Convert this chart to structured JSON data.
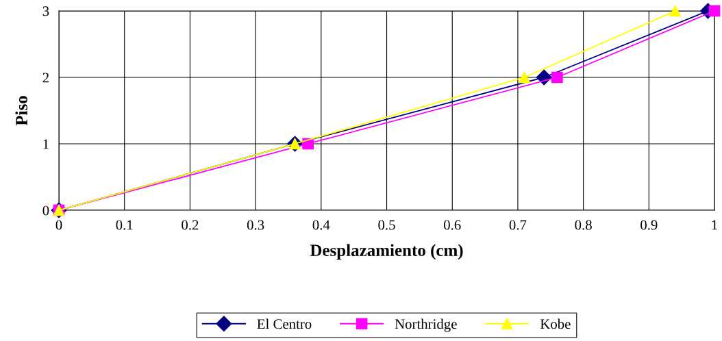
{
  "chart_data": {
    "type": "line",
    "xlabel": "Desplazamiento (cm)",
    "ylabel": "Piso",
    "series": [
      {
        "name": "El Centro",
        "color": "#000080",
        "marker": "diamond",
        "x": [
          0,
          0.36,
          0.74,
          0.99
        ],
        "values": [
          0,
          1,
          2,
          3
        ]
      },
      {
        "name": "Northridge",
        "color": "#ff00ff",
        "marker": "square",
        "x": [
          0,
          0.38,
          0.76,
          1.0
        ],
        "values": [
          0,
          1,
          2,
          3
        ]
      },
      {
        "name": "Kobe",
        "color": "#ffff00",
        "marker": "triangle",
        "x": [
          0,
          0.36,
          0.71,
          0.94
        ],
        "values": [
          0,
          1,
          2,
          3
        ]
      }
    ],
    "xlim": [
      0,
      1
    ],
    "xticks": [
      0,
      0.1,
      0.2,
      0.3,
      0.4,
      0.5,
      0.6,
      0.7,
      0.8,
      0.9,
      1
    ],
    "ylim": [
      0,
      3
    ],
    "yticks": [
      0,
      1,
      2,
      3
    ],
    "grid": true,
    "legend": "bottom",
    "line_style": "solid"
  }
}
